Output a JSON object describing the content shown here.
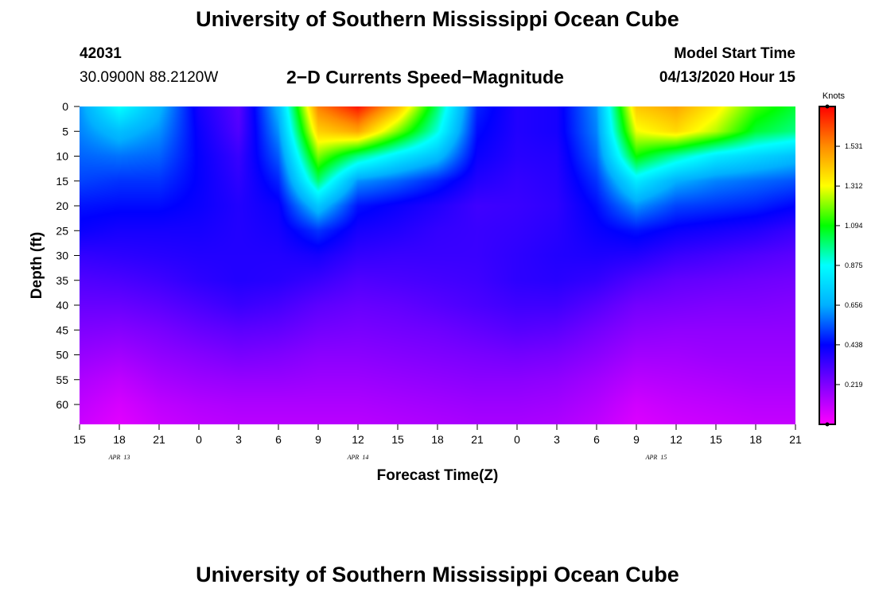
{
  "header": {
    "title": "University of Southern Mississippi Ocean Cube",
    "station": "42031",
    "latlon": "30.0900N 88.2120W",
    "subtitle": "2−D Currents Speed−Magnitude",
    "model_label": "Model Start Time",
    "model_time": "04/13/2020 Hour 15"
  },
  "footer": {
    "title": "University of Southern Mississippi Ocean Cube"
  },
  "chart_data": {
    "type": "heatmap",
    "title": "2-D Currents Speed-Magnitude",
    "xlabel": "Forecast Time(Z)",
    "ylabel": "Depth (ft)",
    "colorbar_label": "Knots",
    "x_tick_labels": [
      "15",
      "18",
      "21",
      "0",
      "3",
      "6",
      "9",
      "12",
      "15",
      "18",
      "21",
      "0",
      "3",
      "6",
      "9",
      "12",
      "15",
      "18",
      "21"
    ],
    "date_labels": [
      {
        "text": "APR  13",
        "hour_index": 1
      },
      {
        "text": "APR  14",
        "hour_index": 7
      },
      {
        "text": "APR  15",
        "hour_index": 14.5
      }
    ],
    "y_ticks": [
      0,
      5,
      10,
      15,
      20,
      25,
      30,
      35,
      40,
      45,
      50,
      55,
      60
    ],
    "ylim": [
      0,
      64
    ],
    "colorbar_ticks": [
      "0.219",
      "0.438",
      "0.656",
      "0.875",
      "1.094",
      "1.312",
      "1.531"
    ],
    "colorbar_range": [
      0,
      1.75
    ],
    "hours": [
      0,
      3,
      6,
      9,
      12,
      15,
      18,
      21,
      24,
      27,
      30,
      33,
      36,
      39,
      42,
      45,
      48,
      51,
      54
    ],
    "depths": [
      0,
      5,
      10,
      15,
      20,
      25,
      30,
      35,
      40,
      45,
      50,
      55,
      60,
      64
    ],
    "speed": [
      [
        0.62,
        0.88,
        0.68,
        0.4,
        0.28,
        0.68,
        1.55,
        1.72,
        1.45,
        1.0,
        0.48,
        0.38,
        0.4,
        0.62,
        1.42,
        1.48,
        1.35,
        1.15,
        1.05
      ],
      [
        0.6,
        0.7,
        0.62,
        0.42,
        0.3,
        0.62,
        1.4,
        1.48,
        1.2,
        0.9,
        0.45,
        0.38,
        0.4,
        0.6,
        1.3,
        1.38,
        1.25,
        1.05,
        0.98
      ],
      [
        0.56,
        0.58,
        0.56,
        0.43,
        0.34,
        0.55,
        1.2,
        0.98,
        0.82,
        0.7,
        0.42,
        0.37,
        0.38,
        0.56,
        1.1,
        0.95,
        0.82,
        0.76,
        0.7
      ],
      [
        0.52,
        0.5,
        0.5,
        0.43,
        0.36,
        0.48,
        1.0,
        0.62,
        0.56,
        0.48,
        0.38,
        0.35,
        0.37,
        0.5,
        0.82,
        0.66,
        0.6,
        0.57,
        0.54
      ],
      [
        0.46,
        0.45,
        0.45,
        0.42,
        0.38,
        0.42,
        0.72,
        0.46,
        0.42,
        0.38,
        0.33,
        0.34,
        0.36,
        0.45,
        0.62,
        0.52,
        0.5,
        0.48,
        0.44
      ],
      [
        0.42,
        0.4,
        0.4,
        0.4,
        0.38,
        0.4,
        0.5,
        0.4,
        0.38,
        0.35,
        0.34,
        0.35,
        0.37,
        0.42,
        0.46,
        0.42,
        0.4,
        0.38,
        0.34
      ],
      [
        0.35,
        0.36,
        0.37,
        0.38,
        0.38,
        0.38,
        0.4,
        0.35,
        0.34,
        0.34,
        0.34,
        0.36,
        0.38,
        0.39,
        0.38,
        0.34,
        0.32,
        0.3,
        0.28
      ],
      [
        0.3,
        0.31,
        0.33,
        0.36,
        0.38,
        0.37,
        0.34,
        0.3,
        0.31,
        0.32,
        0.33,
        0.36,
        0.37,
        0.35,
        0.3,
        0.27,
        0.26,
        0.25,
        0.24
      ],
      [
        0.26,
        0.26,
        0.28,
        0.31,
        0.34,
        0.32,
        0.28,
        0.26,
        0.27,
        0.29,
        0.31,
        0.33,
        0.33,
        0.29,
        0.24,
        0.23,
        0.22,
        0.22,
        0.21
      ],
      [
        0.22,
        0.21,
        0.23,
        0.26,
        0.28,
        0.27,
        0.24,
        0.23,
        0.24,
        0.25,
        0.27,
        0.29,
        0.28,
        0.24,
        0.2,
        0.19,
        0.19,
        0.19,
        0.19
      ],
      [
        0.18,
        0.16,
        0.19,
        0.21,
        0.23,
        0.22,
        0.2,
        0.2,
        0.21,
        0.22,
        0.23,
        0.24,
        0.23,
        0.2,
        0.16,
        0.16,
        0.17,
        0.17,
        0.17
      ],
      [
        0.14,
        0.11,
        0.15,
        0.17,
        0.18,
        0.18,
        0.17,
        0.17,
        0.18,
        0.19,
        0.2,
        0.2,
        0.19,
        0.16,
        0.12,
        0.13,
        0.14,
        0.15,
        0.15
      ],
      [
        0.11,
        0.07,
        0.11,
        0.13,
        0.14,
        0.14,
        0.14,
        0.14,
        0.15,
        0.16,
        0.17,
        0.17,
        0.16,
        0.13,
        0.08,
        0.1,
        0.11,
        0.12,
        0.12
      ],
      [
        0.09,
        0.05,
        0.09,
        0.11,
        0.12,
        0.12,
        0.12,
        0.12,
        0.13,
        0.14,
        0.15,
        0.15,
        0.14,
        0.11,
        0.06,
        0.08,
        0.09,
        0.1,
        0.1
      ]
    ]
  }
}
